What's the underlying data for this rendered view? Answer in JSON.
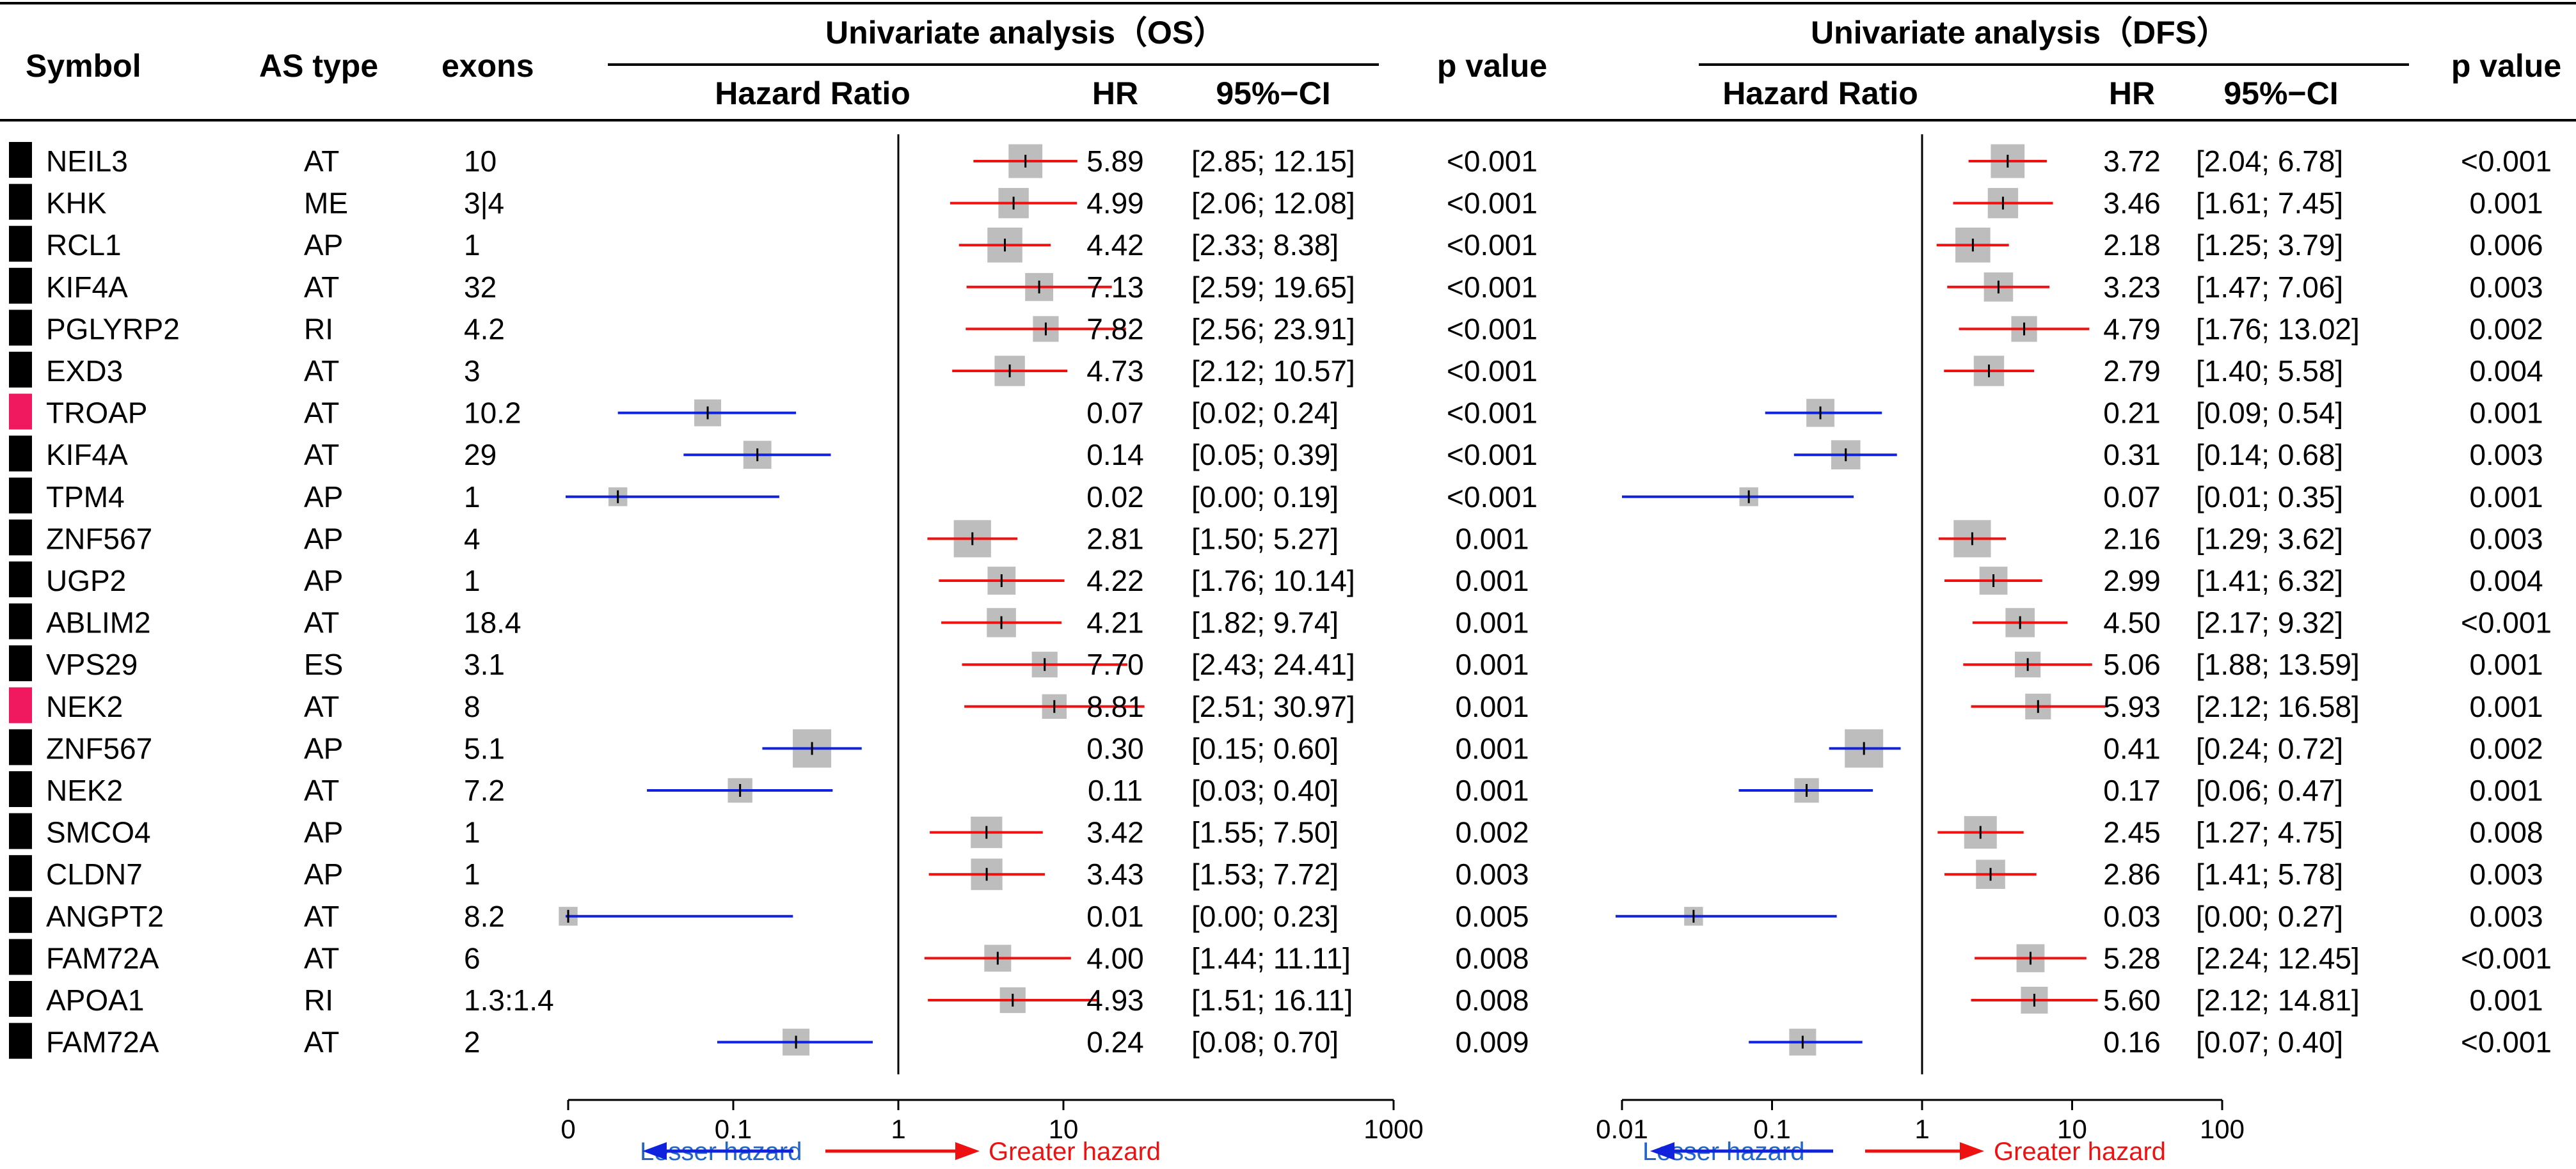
{
  "chart_data": {
    "type": "forest",
    "columns": {
      "symbol": "Symbol",
      "as_type": "AS type",
      "exons": "exons",
      "hazard_ratio": "Hazard Ratio",
      "hr": "HR",
      "ci": "95%−CI",
      "p_value": "p value"
    },
    "panels": [
      {
        "id": "os",
        "title": "Univariate analysis（OS）",
        "axis_ticks": [
          {
            "value": 0.01,
            "label": "0"
          },
          {
            "value": 0.1,
            "label": "0.1"
          },
          {
            "value": 1,
            "label": "1"
          },
          {
            "value": 10,
            "label": "10"
          },
          {
            "value": 1000,
            "label": "1000"
          }
        ],
        "axis_range": [
          0.01,
          1000
        ],
        "legend_left": "Lesser hazard",
        "legend_right": "Greater hazard"
      },
      {
        "id": "dfs",
        "title": "Univariate analysis（DFS）",
        "axis_ticks": [
          {
            "value": 0.01,
            "label": "0.01"
          },
          {
            "value": 0.1,
            "label": "0.1"
          },
          {
            "value": 1,
            "label": "1"
          },
          {
            "value": 10,
            "label": "10"
          },
          {
            "value": 100,
            "label": "100"
          }
        ],
        "axis_range": [
          0.01,
          100
        ],
        "legend_left": "Lesser hazard",
        "legend_right": "Greater hazard"
      }
    ],
    "rows": [
      {
        "symbol": "NEIL3",
        "marker": "black",
        "as_type": "AT",
        "exons": "10",
        "os": {
          "hr": 5.89,
          "lo": 2.85,
          "hi": 12.15,
          "weight": 0.8,
          "hr_text": "5.89",
          "ci_text": "[2.85; 12.15]",
          "p": "<0.001"
        },
        "dfs": {
          "hr": 3.72,
          "lo": 2.04,
          "hi": 6.78,
          "weight": 0.8,
          "hr_text": "3.72",
          "ci_text": "[2.04; 6.78]",
          "p": "<0.001"
        }
      },
      {
        "symbol": "KHK",
        "marker": "black",
        "as_type": "ME",
        "exons": "3|4",
        "os": {
          "hr": 4.99,
          "lo": 2.06,
          "hi": 12.08,
          "weight": 0.65,
          "hr_text": "4.99",
          "ci_text": "[2.06; 12.08]",
          "p": "<0.001"
        },
        "dfs": {
          "hr": 3.46,
          "lo": 1.61,
          "hi": 7.45,
          "weight": 0.65,
          "hr_text": "3.46",
          "ci_text": "[1.61; 7.45]",
          "p": "0.001"
        }
      },
      {
        "symbol": "RCL1",
        "marker": "black",
        "as_type": "AP",
        "exons": "1",
        "os": {
          "hr": 4.42,
          "lo": 2.33,
          "hi": 8.38,
          "weight": 0.85,
          "hr_text": "4.42",
          "ci_text": "[2.33; 8.38]",
          "p": "<0.001"
        },
        "dfs": {
          "hr": 2.18,
          "lo": 1.25,
          "hi": 3.79,
          "weight": 0.85,
          "hr_text": "2.18",
          "ci_text": "[1.25; 3.79]",
          "p": "0.006"
        }
      },
      {
        "symbol": "KIF4A",
        "marker": "black",
        "as_type": "AT",
        "exons": "32",
        "os": {
          "hr": 7.13,
          "lo": 2.59,
          "hi": 19.65,
          "weight": 0.55,
          "hr_text": "7.13",
          "ci_text": "[2.59; 19.65]",
          "p": "<0.001"
        },
        "dfs": {
          "hr": 3.23,
          "lo": 1.47,
          "hi": 7.06,
          "weight": 0.6,
          "hr_text": "3.23",
          "ci_text": "[1.47; 7.06]",
          "p": "0.003"
        }
      },
      {
        "symbol": "PGLYRP2",
        "marker": "black",
        "as_type": "RI",
        "exons": "4.2",
        "os": {
          "hr": 7.82,
          "lo": 2.56,
          "hi": 23.91,
          "weight": 0.45,
          "hr_text": "7.82",
          "ci_text": "[2.56; 23.91]",
          "p": "<0.001"
        },
        "dfs": {
          "hr": 4.79,
          "lo": 1.76,
          "hi": 13.02,
          "weight": 0.45,
          "hr_text": "4.79",
          "ci_text": "[1.76; 13.02]",
          "p": "0.002"
        }
      },
      {
        "symbol": "EXD3",
        "marker": "black",
        "as_type": "AT",
        "exons": "3",
        "os": {
          "hr": 4.73,
          "lo": 2.12,
          "hi": 10.57,
          "weight": 0.65,
          "hr_text": "4.73",
          "ci_text": "[2.12; 10.57]",
          "p": "<0.001"
        },
        "dfs": {
          "hr": 2.79,
          "lo": 1.4,
          "hi": 5.58,
          "weight": 0.65,
          "hr_text": "2.79",
          "ci_text": "[1.40; 5.58]",
          "p": "0.004"
        }
      },
      {
        "symbol": "TROAP",
        "marker": "pink",
        "as_type": "AT",
        "exons": "10.2",
        "os": {
          "hr": 0.07,
          "lo": 0.02,
          "hi": 0.24,
          "weight": 0.5,
          "hr_text": "0.07",
          "ci_text": "[0.02; 0.24]",
          "p": "<0.001"
        },
        "dfs": {
          "hr": 0.21,
          "lo": 0.09,
          "hi": 0.54,
          "weight": 0.55,
          "hr_text": "0.21",
          "ci_text": "[0.09; 0.54]",
          "p": "0.001"
        }
      },
      {
        "symbol": "KIF4A",
        "marker": "black",
        "as_type": "AT",
        "exons": "29",
        "os": {
          "hr": 0.14,
          "lo": 0.05,
          "hi": 0.39,
          "weight": 0.55,
          "hr_text": "0.14",
          "ci_text": "[0.05; 0.39]",
          "p": "<0.001"
        },
        "dfs": {
          "hr": 0.31,
          "lo": 0.14,
          "hi": 0.68,
          "weight": 0.6,
          "hr_text": "0.31",
          "ci_text": "[0.14; 0.68]",
          "p": "0.003"
        }
      },
      {
        "symbol": "TPM4",
        "marker": "black",
        "as_type": "AP",
        "exons": "1",
        "os": {
          "hr": 0.02,
          "lo": 0.0,
          "hi": 0.19,
          "weight": 0.15,
          "hr_text": "0.02",
          "ci_text": "[0.00; 0.19]",
          "p": "<0.001"
        },
        "dfs": {
          "hr": 0.07,
          "lo": 0.01,
          "hi": 0.35,
          "weight": 0.15,
          "hr_text": "0.07",
          "ci_text": "[0.01; 0.35]",
          "p": "0.001"
        }
      },
      {
        "symbol": "ZNF567",
        "marker": "black",
        "as_type": "AP",
        "exons": "4",
        "os": {
          "hr": 2.81,
          "lo": 1.5,
          "hi": 5.27,
          "weight": 0.95,
          "hr_text": "2.81",
          "ci_text": "[1.50; 5.27]",
          "p": "0.001"
        },
        "dfs": {
          "hr": 2.16,
          "lo": 1.29,
          "hi": 3.62,
          "weight": 0.95,
          "hr_text": "2.16",
          "ci_text": "[1.29; 3.62]",
          "p": "0.003"
        }
      },
      {
        "symbol": "UGP2",
        "marker": "black",
        "as_type": "AP",
        "exons": "1",
        "os": {
          "hr": 4.22,
          "lo": 1.76,
          "hi": 10.14,
          "weight": 0.55,
          "hr_text": "4.22",
          "ci_text": "[1.76; 10.14]",
          "p": "0.001"
        },
        "dfs": {
          "hr": 2.99,
          "lo": 1.41,
          "hi": 6.32,
          "weight": 0.55,
          "hr_text": "2.99",
          "ci_text": "[1.41; 6.32]",
          "p": "0.004"
        }
      },
      {
        "symbol": "ABLIM2",
        "marker": "black",
        "as_type": "AT",
        "exons": "18.4",
        "os": {
          "hr": 4.21,
          "lo": 1.82,
          "hi": 9.74,
          "weight": 0.6,
          "hr_text": "4.21",
          "ci_text": "[1.82; 9.74]",
          "p": "0.001"
        },
        "dfs": {
          "hr": 4.5,
          "lo": 2.17,
          "hi": 9.32,
          "weight": 0.6,
          "hr_text": "4.50",
          "ci_text": "[2.17; 9.32]",
          "p": "<0.001"
        }
      },
      {
        "symbol": "VPS29",
        "marker": "black",
        "as_type": "ES",
        "exons": "3.1",
        "os": {
          "hr": 7.7,
          "lo": 2.43,
          "hi": 24.41,
          "weight": 0.45,
          "hr_text": "7.70",
          "ci_text": "[2.43; 24.41]",
          "p": "0.001"
        },
        "dfs": {
          "hr": 5.06,
          "lo": 1.88,
          "hi": 13.59,
          "weight": 0.45,
          "hr_text": "5.06",
          "ci_text": "[1.88; 13.59]",
          "p": "0.001"
        }
      },
      {
        "symbol": "NEK2",
        "marker": "pink",
        "as_type": "AT",
        "exons": "8",
        "os": {
          "hr": 8.81,
          "lo": 2.51,
          "hi": 30.97,
          "weight": 0.4,
          "hr_text": "8.81",
          "ci_text": "[2.51; 30.97]",
          "p": "0.001"
        },
        "dfs": {
          "hr": 5.93,
          "lo": 2.12,
          "hi": 16.58,
          "weight": 0.45,
          "hr_text": "5.93",
          "ci_text": "[2.12; 16.58]",
          "p": "0.001"
        }
      },
      {
        "symbol": "ZNF567",
        "marker": "black",
        "as_type": "AP",
        "exons": "5.1",
        "os": {
          "hr": 0.3,
          "lo": 0.15,
          "hi": 0.6,
          "weight": 1.0,
          "hr_text": "0.30",
          "ci_text": "[0.15; 0.60]",
          "p": "0.001"
        },
        "dfs": {
          "hr": 0.41,
          "lo": 0.24,
          "hi": 0.72,
          "weight": 1.0,
          "hr_text": "0.41",
          "ci_text": "[0.24; 0.72]",
          "p": "0.002"
        }
      },
      {
        "symbol": "NEK2",
        "marker": "black",
        "as_type": "AT",
        "exons": "7.2",
        "os": {
          "hr": 0.11,
          "lo": 0.03,
          "hi": 0.4,
          "weight": 0.4,
          "hr_text": "0.11",
          "ci_text": "[0.03; 0.40]",
          "p": "0.001"
        },
        "dfs": {
          "hr": 0.17,
          "lo": 0.06,
          "hi": 0.47,
          "weight": 0.4,
          "hr_text": "0.17",
          "ci_text": "[0.06; 0.47]",
          "p": "0.001"
        }
      },
      {
        "symbol": "SMCO4",
        "marker": "black",
        "as_type": "AP",
        "exons": "1",
        "os": {
          "hr": 3.42,
          "lo": 1.55,
          "hi": 7.5,
          "weight": 0.7,
          "hr_text": "3.42",
          "ci_text": "[1.55; 7.50]",
          "p": "0.002"
        },
        "dfs": {
          "hr": 2.45,
          "lo": 1.27,
          "hi": 4.75,
          "weight": 0.75,
          "hr_text": "2.45",
          "ci_text": "[1.27; 4.75]",
          "p": "0.008"
        }
      },
      {
        "symbol": "CLDN7",
        "marker": "black",
        "as_type": "AP",
        "exons": "1",
        "os": {
          "hr": 3.43,
          "lo": 1.53,
          "hi": 7.72,
          "weight": 0.7,
          "hr_text": "3.43",
          "ci_text": "[1.53; 7.72]",
          "p": "0.003"
        },
        "dfs": {
          "hr": 2.86,
          "lo": 1.41,
          "hi": 5.78,
          "weight": 0.6,
          "hr_text": "2.86",
          "ci_text": "[1.41; 5.78]",
          "p": "0.003"
        }
      },
      {
        "symbol": "ANGPT2",
        "marker": "black",
        "as_type": "AT",
        "exons": "8.2",
        "os": {
          "hr": 0.01,
          "lo": 0.0,
          "hi": 0.23,
          "weight": 0.15,
          "hr_text": "0.01",
          "ci_text": "[0.00; 0.23]",
          "p": "0.005"
        },
        "dfs": {
          "hr": 0.03,
          "lo": 0.0,
          "hi": 0.27,
          "weight": 0.15,
          "hr_text": "0.03",
          "ci_text": "[0.00; 0.27]",
          "p": "0.003"
        }
      },
      {
        "symbol": "FAM72A",
        "marker": "black",
        "as_type": "AT",
        "exons": "6",
        "os": {
          "hr": 4.0,
          "lo": 1.44,
          "hi": 11.11,
          "weight": 0.5,
          "hr_text": "4.00",
          "ci_text": "[1.44; 11.11]",
          "p": "0.008"
        },
        "dfs": {
          "hr": 5.28,
          "lo": 2.24,
          "hi": 12.45,
          "weight": 0.55,
          "hr_text": "5.28",
          "ci_text": "[2.24; 12.45]",
          "p": "<0.001"
        }
      },
      {
        "symbol": "APOA1",
        "marker": "black",
        "as_type": "RI",
        "exons": "1.3:1.4",
        "os": {
          "hr": 4.93,
          "lo": 1.51,
          "hi": 16.11,
          "weight": 0.45,
          "hr_text": "4.93",
          "ci_text": "[1.51; 16.11]",
          "p": "0.008"
        },
        "dfs": {
          "hr": 5.6,
          "lo": 2.12,
          "hi": 14.81,
          "weight": 0.5,
          "hr_text": "5.60",
          "ci_text": "[2.12; 14.81]",
          "p": "0.001"
        }
      },
      {
        "symbol": "FAM72A",
        "marker": "black",
        "as_type": "AT",
        "exons": "2",
        "os": {
          "hr": 0.24,
          "lo": 0.08,
          "hi": 0.7,
          "weight": 0.5,
          "hr_text": "0.24",
          "ci_text": "[0.08; 0.70]",
          "p": "0.009"
        },
        "dfs": {
          "hr": 0.16,
          "lo": 0.07,
          "hi": 0.4,
          "weight": 0.5,
          "hr_text": "0.16",
          "ci_text": "[0.07; 0.40]",
          "p": "<0.001"
        }
      }
    ],
    "colors": {
      "greater": "#ee1111",
      "lesser": "#1122dd",
      "box": "#bdbdbd",
      "marker_black": "#000000",
      "marker_pink": "#f0185e",
      "legend_lesser_text": "#2266cc",
      "legend_greater_text": "#ee1111"
    }
  }
}
